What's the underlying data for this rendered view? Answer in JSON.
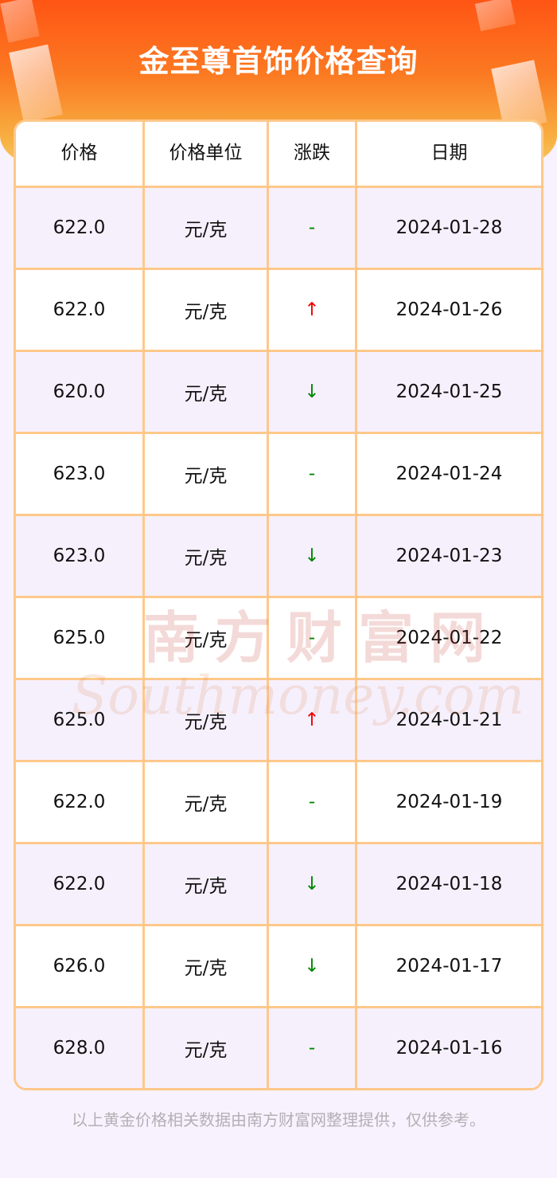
{
  "title": "金至尊首饰价格查询",
  "table": {
    "headers": [
      "价格",
      "价格单位",
      "涨跌",
      "日期"
    ],
    "rows": [
      {
        "price": "622.0",
        "unit": "元/克",
        "change": "-",
        "trend": "flat",
        "date": "2024-01-28"
      },
      {
        "price": "622.0",
        "unit": "元/克",
        "change": "↑",
        "trend": "up",
        "date": "2024-01-26"
      },
      {
        "price": "620.0",
        "unit": "元/克",
        "change": "↓",
        "trend": "down",
        "date": "2024-01-25"
      },
      {
        "price": "623.0",
        "unit": "元/克",
        "change": "-",
        "trend": "flat",
        "date": "2024-01-24"
      },
      {
        "price": "623.0",
        "unit": "元/克",
        "change": "↓",
        "trend": "down",
        "date": "2024-01-23"
      },
      {
        "price": "625.0",
        "unit": "元/克",
        "change": "-",
        "trend": "flat",
        "date": "2024-01-22"
      },
      {
        "price": "625.0",
        "unit": "元/克",
        "change": "↑",
        "trend": "up",
        "date": "2024-01-21"
      },
      {
        "price": "622.0",
        "unit": "元/克",
        "change": "-",
        "trend": "flat",
        "date": "2024-01-19"
      },
      {
        "price": "622.0",
        "unit": "元/克",
        "change": "↓",
        "trend": "down",
        "date": "2024-01-18"
      },
      {
        "price": "626.0",
        "unit": "元/克",
        "change": "↓",
        "trend": "down",
        "date": "2024-01-17"
      },
      {
        "price": "628.0",
        "unit": "元/克",
        "change": "-",
        "trend": "flat",
        "date": "2024-01-16"
      }
    ]
  },
  "watermark": {
    "cn": "南方财富网",
    "en": "Southmoney.com"
  },
  "footer": "以上黄金价格相关数据由南方财富网整理提供，仅供参考。",
  "colors": {
    "up": "#ee0000",
    "down": "#008800",
    "border": "#ffc88a",
    "banner": "#ff5514"
  }
}
